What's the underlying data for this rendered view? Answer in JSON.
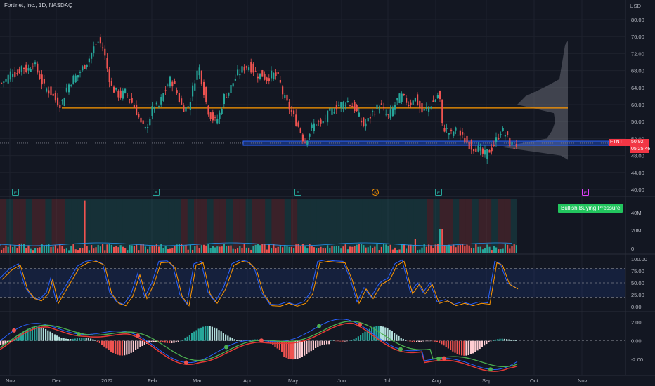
{
  "header": {
    "title": "Fortinet, Inc., 1D, NASDAQ",
    "currency": "USD"
  },
  "colors": {
    "bg": "#131722",
    "up": "#26a69a",
    "down": "#ef5350",
    "hline": "#ff9800",
    "zone": "#2962ff"
  },
  "price_badge": {
    "ticker": "FTNT",
    "price": "50.92",
    "timer": "05:25:46"
  },
  "buying_label": "Bullish Buying Pressure",
  "chart_data": {
    "type": "candlestick",
    "x_ticks": [
      "Nov",
      "Dec",
      "2022",
      "Feb",
      "Mar",
      "Apr",
      "May",
      "Jun",
      "Jul",
      "Aug",
      "Sep",
      "Oct",
      "Nov"
    ],
    "y_ticks": [
      "80.00",
      "76.00",
      "72.00",
      "68.00",
      "64.00",
      "60.00",
      "56.00",
      "52.00",
      "48.00",
      "44.00",
      "40.00"
    ],
    "ylim": [
      40,
      80
    ],
    "horizontal_level": 59.2,
    "support_zone": [
      50.4,
      51.4
    ],
    "close_path": [
      [
        0,
        65
      ],
      [
        8,
        66
      ],
      [
        16,
        68
      ],
      [
        22,
        67
      ],
      [
        30,
        69
      ],
      [
        38,
        68
      ],
      [
        46,
        70
      ],
      [
        54,
        67
      ],
      [
        62,
        64
      ],
      [
        70,
        63
      ],
      [
        78,
        61
      ],
      [
        86,
        60
      ],
      [
        94,
        64
      ],
      [
        102,
        66
      ],
      [
        110,
        67
      ],
      [
        118,
        69
      ],
      [
        126,
        71
      ],
      [
        134,
        74
      ],
      [
        140,
        75
      ],
      [
        146,
        73
      ],
      [
        152,
        68
      ],
      [
        158,
        64
      ],
      [
        164,
        63
      ],
      [
        170,
        62
      ],
      [
        176,
        63
      ],
      [
        182,
        62
      ],
      [
        188,
        60
      ],
      [
        194,
        58
      ],
      [
        200,
        55
      ],
      [
        206,
        54
      ],
      [
        212,
        57
      ],
      [
        218,
        60
      ],
      [
        224,
        59
      ],
      [
        230,
        62
      ],
      [
        236,
        64
      ],
      [
        242,
        66
      ],
      [
        248,
        64
      ],
      [
        256,
        60
      ],
      [
        262,
        59
      ],
      [
        268,
        60
      ],
      [
        276,
        66
      ],
      [
        282,
        69
      ],
      [
        288,
        64
      ],
      [
        294,
        59
      ],
      [
        300,
        57
      ],
      [
        306,
        56
      ],
      [
        312,
        58
      ],
      [
        318,
        62
      ],
      [
        324,
        63
      ],
      [
        330,
        65
      ],
      [
        336,
        67
      ],
      [
        342,
        68
      ],
      [
        348,
        69
      ],
      [
        354,
        69
      ],
      [
        360,
        68
      ],
      [
        366,
        67
      ],
      [
        372,
        67
      ],
      [
        378,
        66
      ],
      [
        384,
        67
      ],
      [
        390,
        67
      ],
      [
        396,
        66
      ],
      [
        402,
        62
      ],
      [
        408,
        60
      ],
      [
        414,
        58
      ],
      [
        420,
        56
      ],
      [
        426,
        54
      ],
      [
        432,
        51
      ],
      [
        438,
        53
      ],
      [
        444,
        55
      ],
      [
        450,
        56
      ],
      [
        456,
        55
      ],
      [
        462,
        57
      ],
      [
        468,
        58
      ],
      [
        474,
        59
      ],
      [
        480,
        60
      ],
      [
        486,
        60
      ],
      [
        492,
        61
      ],
      [
        498,
        60
      ],
      [
        504,
        59
      ],
      [
        510,
        57
      ],
      [
        516,
        55
      ],
      [
        522,
        56
      ],
      [
        528,
        58
      ],
      [
        534,
        59
      ],
      [
        540,
        60
      ],
      [
        546,
        58
      ],
      [
        552,
        57
      ],
      [
        558,
        59
      ],
      [
        564,
        61
      ],
      [
        570,
        62
      ],
      [
        576,
        61
      ],
      [
        582,
        60
      ],
      [
        588,
        62
      ],
      [
        594,
        60
      ],
      [
        600,
        58
      ],
      [
        606,
        59
      ],
      [
        612,
        60
      ],
      [
        618,
        61
      ],
      [
        624,
        63
      ],
      [
        628,
        55
      ],
      [
        634,
        54
      ],
      [
        640,
        53
      ],
      [
        646,
        54
      ],
      [
        652,
        53
      ],
      [
        658,
        52
      ],
      [
        664,
        51
      ],
      [
        670,
        50
      ],
      [
        676,
        50
      ],
      [
        682,
        49
      ],
      [
        688,
        48
      ],
      [
        694,
        49
      ],
      [
        700,
        50
      ],
      [
        706,
        52
      ],
      [
        712,
        54
      ],
      [
        718,
        53
      ],
      [
        724,
        51
      ],
      [
        730,
        50
      ],
      [
        736,
        51
      ]
    ],
    "volume_ticks": [
      "40M",
      "20M",
      "0"
    ],
    "oscillator_ticks": [
      "100.00",
      "75.00",
      "50.00",
      "25.00",
      "0.00"
    ],
    "macd_ticks": [
      "2.00",
      "0.00",
      "-2.00"
    ]
  }
}
